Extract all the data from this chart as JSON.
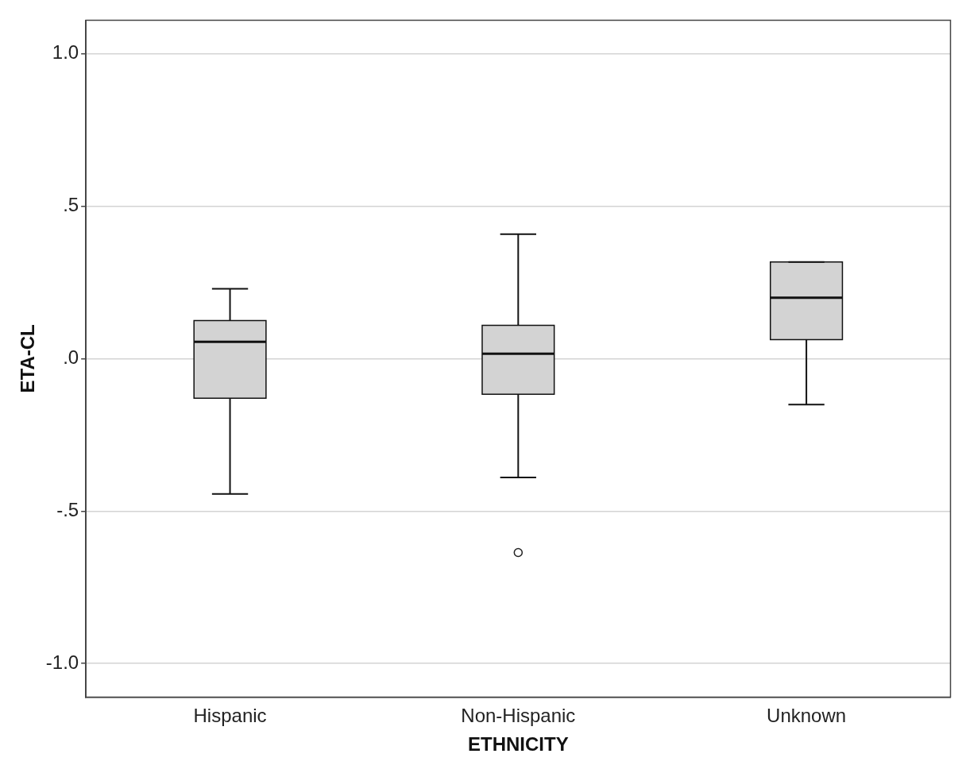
{
  "chart_data": {
    "type": "box",
    "xlabel": "ETHNICITY",
    "ylabel": "ETA-CL",
    "categories": [
      "Hispanic",
      "Non-Hispanic",
      "Unknown"
    ],
    "series": [
      {
        "color": "#d3d3d3",
        "boxes": [
          {
            "low": -0.444,
            "q1": -0.13,
            "median": 0.055,
            "q3": 0.125,
            "high": 0.229
          },
          {
            "low": -0.39,
            "q1": -0.117,
            "median": 0.016,
            "q3": 0.109,
            "high": 0.408,
            "outliers": [
              -0.636
            ]
          },
          {
            "low": -0.151,
            "q1": 0.062,
            "median": 0.2,
            "q3": 0.317,
            "high": 0.317
          }
        ]
      }
    ],
    "ylim": [
      -1.11,
      1.11
    ],
    "yticks": [
      {
        "value": -1.0,
        "label": "-1.0"
      },
      {
        "value": -0.5,
        "label": "-.5"
      },
      {
        "value": 0,
        "label": ".0"
      },
      {
        "value": 0.5,
        "label": ".5"
      },
      {
        "value": 1.0,
        "label": "1.0"
      }
    ],
    "grid": "y"
  }
}
